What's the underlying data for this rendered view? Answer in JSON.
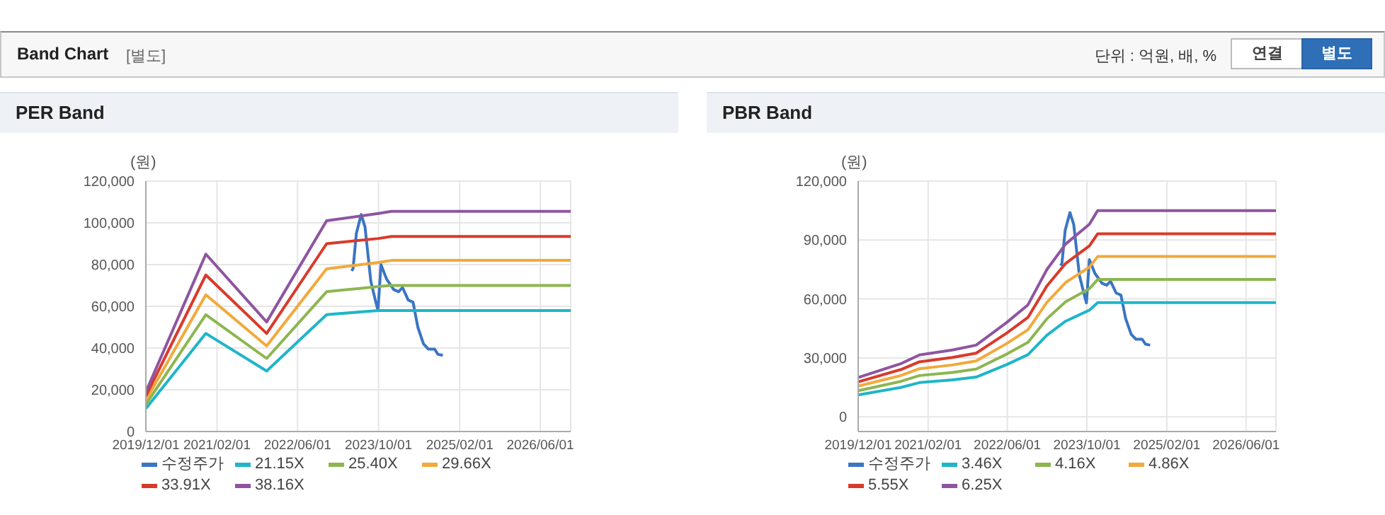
{
  "chart_data": [
    {
      "type": "line",
      "title": "PER Band",
      "ylabel": "(원)",
      "annotations": [
        "Band Chart",
        "[별도]",
        "단위 : 억원, 배, %",
        "연결",
        "별도"
      ],
      "legend": "bottom",
      "grid": true,
      "marker": "none",
      "line_style": "solid",
      "xlim": [
        "2019-12-01",
        "2026-12-01"
      ],
      "xticks": [
        {
          "value": "2019-12-01",
          "label": "2019/12/01"
        },
        {
          "value": "2021-02-01",
          "label": "2021/02/01"
        },
        {
          "value": "2022-06-01",
          "label": "2022/06/01"
        },
        {
          "value": "2023-10-01",
          "label": "2023/10/01"
        },
        {
          "value": "2025-02-01",
          "label": "2025/02/01"
        },
        {
          "value": "2026-06-01",
          "label": "2026/06/01"
        }
      ],
      "ylim": [
        0,
        120000
      ],
      "yticks": [
        0,
        {
          "value": 20000,
          "label": "20,000"
        },
        {
          "value": 40000,
          "label": "40,000"
        },
        {
          "value": 60000,
          "label": "60,000"
        },
        {
          "value": 80000,
          "label": "80,000"
        },
        {
          "value": 100000,
          "label": "100,000"
        },
        {
          "value": 120000,
          "label": "120,000"
        }
      ],
      "series": [
        {
          "name": "수정주가",
          "color": "#3a75c4",
          "x": [
            "2023-04-22",
            "2023-05-01",
            "2023-05-21",
            "2023-06-19",
            "2023-07-12",
            "2023-08-16",
            "2023-09-15",
            "2023-09-28",
            "2023-10-16",
            "2023-11-19",
            "2024-01-01",
            "2024-01-30",
            "2024-02-23",
            "2024-03-28",
            "2024-04-26",
            "2024-05-25",
            "2024-06-28",
            "2024-07-27",
            "2024-09-03",
            "2024-09-23",
            "2024-10-22"
          ],
          "values": [
            77000,
            78000,
            95000,
            104000,
            98000,
            72000,
            62000,
            58000,
            80000,
            73000,
            68000,
            67000,
            69000,
            63000,
            62000,
            50000,
            42000,
            39500,
            39500,
            37000,
            36500
          ]
        },
        {
          "name": "21.15X",
          "color": "#1fb5c9",
          "x": [
            "2019-12-01",
            "2020-11-26",
            "2021-11-27",
            "2022-11-23",
            "2023-10-01",
            "2023-12-18",
            "2026-12-01"
          ],
          "values": [
            11000,
            47000,
            29000,
            56000,
            58000,
            58000,
            58000
          ]
        },
        {
          "name": "25.40X",
          "color": "#8db650",
          "x": [
            "2019-12-01",
            "2020-11-26",
            "2021-11-27",
            "2022-11-23",
            "2023-10-01",
            "2023-12-18",
            "2026-12-01"
          ],
          "values": [
            13000,
            56000,
            35000,
            67000,
            69500,
            70000,
            70000
          ]
        },
        {
          "name": "29.66X",
          "color": "#f2a93b",
          "x": [
            "2019-12-01",
            "2020-11-26",
            "2021-11-27",
            "2022-11-23",
            "2023-10-01",
            "2023-12-18",
            "2026-12-01"
          ],
          "values": [
            15000,
            65500,
            41000,
            78000,
            81000,
            82000,
            82000
          ]
        },
        {
          "name": "33.91X",
          "color": "#d93a2b",
          "x": [
            "2019-12-01",
            "2020-11-26",
            "2021-11-27",
            "2022-11-23",
            "2023-10-01",
            "2023-12-18",
            "2026-12-01"
          ],
          "values": [
            17000,
            75000,
            47000,
            90000,
            92500,
            93500,
            93500
          ]
        },
        {
          "name": "38.16X",
          "color": "#8e55a0",
          "x": [
            "2019-12-01",
            "2020-11-26",
            "2021-11-27",
            "2022-11-23",
            "2023-10-01",
            "2023-12-18",
            "2026-12-01"
          ],
          "values": [
            19000,
            85000,
            52500,
            101000,
            104500,
            105500,
            105500
          ]
        }
      ]
    },
    {
      "type": "line",
      "title": "PBR Band",
      "ylabel": "(원)",
      "legend": "bottom",
      "grid": true,
      "marker": "none",
      "line_style": "solid",
      "xlim": [
        "2019-12-01",
        "2026-12-01"
      ],
      "xticks": [
        {
          "value": "2019-12-01",
          "label": "2019/12/01"
        },
        {
          "value": "2021-02-01",
          "label": "2021/02/01"
        },
        {
          "value": "2022-06-01",
          "label": "2022/06/01"
        },
        {
          "value": "2023-10-01",
          "label": "2023/10/01"
        },
        {
          "value": "2025-02-01",
          "label": "2025/02/01"
        },
        {
          "value": "2026-06-01",
          "label": "2026/06/01"
        }
      ],
      "ylim": [
        -7500,
        120000
      ],
      "yticks": [
        0,
        {
          "value": 30000,
          "label": "30,000"
        },
        {
          "value": 60000,
          "label": "60,000"
        },
        {
          "value": 90000,
          "label": "90,000"
        },
        {
          "value": 120000,
          "label": "120,000"
        }
      ],
      "series": [
        {
          "name": "수정주가",
          "color": "#3a75c4",
          "x": [
            "2023-04-22",
            "2023-05-01",
            "2023-05-21",
            "2023-06-19",
            "2023-07-12",
            "2023-08-16",
            "2023-09-15",
            "2023-09-28",
            "2023-10-16",
            "2023-11-19",
            "2024-01-01",
            "2024-01-30",
            "2024-02-23",
            "2024-03-28",
            "2024-04-26",
            "2024-05-25",
            "2024-06-28",
            "2024-07-27",
            "2024-09-03",
            "2024-09-23",
            "2024-10-22"
          ],
          "values": [
            77000,
            78000,
            95000,
            104000,
            98000,
            72000,
            62000,
            58000,
            80000,
            73000,
            68000,
            67000,
            69000,
            63000,
            62000,
            50000,
            42000,
            39500,
            39500,
            37000,
            36500
          ]
        },
        {
          "name": "3.46X",
          "color": "#1fb5c9",
          "x": [
            "2019-12-01",
            "2020-08-17",
            "2020-12-10",
            "2021-06-30",
            "2021-11-22",
            "2022-05-28",
            "2022-10-05",
            "2023-01-29",
            "2023-05-24",
            "2023-10-16",
            "2023-12-06",
            "2026-12-01"
          ],
          "values": [
            11100,
            14900,
            17400,
            18800,
            20200,
            26600,
            31600,
            41500,
            48700,
            54300,
            58100,
            58100
          ]
        },
        {
          "name": "4.16X",
          "color": "#8db650",
          "x": [
            "2019-12-01",
            "2020-08-17",
            "2020-12-10",
            "2021-06-30",
            "2021-11-22",
            "2022-05-28",
            "2022-10-05",
            "2023-01-29",
            "2023-05-24",
            "2023-10-16",
            "2023-12-06",
            "2026-12-01"
          ],
          "values": [
            13300,
            18000,
            21000,
            22600,
            24300,
            31900,
            37900,
            49900,
            58600,
            65200,
            69900,
            69900
          ]
        },
        {
          "name": "4.86X",
          "color": "#f2a93b",
          "x": [
            "2019-12-01",
            "2020-08-17",
            "2020-12-10",
            "2021-06-30",
            "2021-11-22",
            "2022-05-28",
            "2022-10-05",
            "2023-01-29",
            "2023-05-24",
            "2023-10-16",
            "2023-12-06",
            "2026-12-01"
          ],
          "values": [
            15600,
            21000,
            24500,
            26400,
            28400,
            37300,
            44300,
            58300,
            68400,
            76200,
            81600,
            81600
          ]
        },
        {
          "name": "5.55X",
          "color": "#d93a2b",
          "x": [
            "2019-12-01",
            "2020-08-17",
            "2020-12-10",
            "2021-06-30",
            "2021-11-22",
            "2022-05-28",
            "2022-10-05",
            "2023-01-29",
            "2023-05-24",
            "2023-10-16",
            "2023-12-06",
            "2026-12-01"
          ],
          "values": [
            17800,
            24000,
            28000,
            30200,
            32400,
            42600,
            50600,
            66600,
            78100,
            87000,
            93200,
            93200
          ]
        },
        {
          "name": "6.25X",
          "color": "#8e55a0",
          "x": [
            "2019-12-01",
            "2020-08-17",
            "2020-12-10",
            "2021-06-30",
            "2021-11-22",
            "2022-05-28",
            "2022-10-05",
            "2023-01-29",
            "2023-05-24",
            "2023-10-16",
            "2023-12-06",
            "2026-12-01"
          ],
          "values": [
            20000,
            27000,
            31500,
            34000,
            36500,
            48000,
            57000,
            75000,
            88000,
            98000,
            105000,
            105000
          ]
        }
      ]
    }
  ]
}
